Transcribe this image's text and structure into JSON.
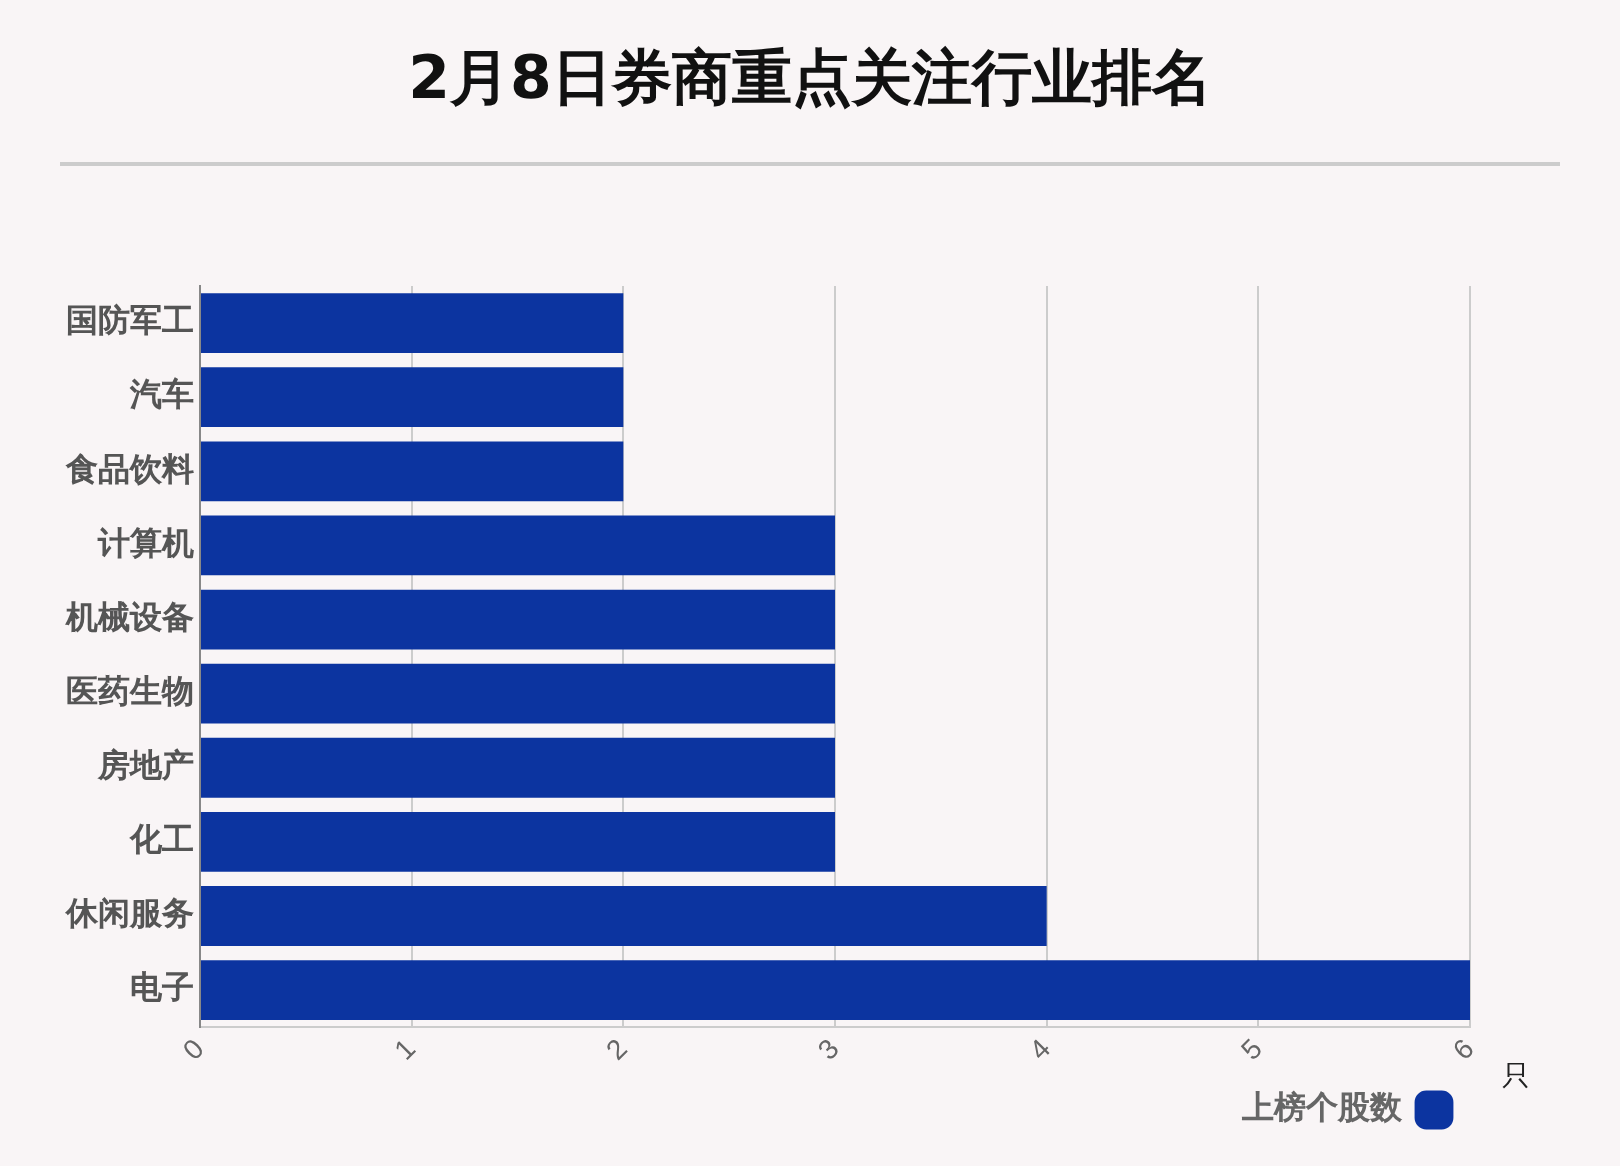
{
  "chart_data": {
    "type": "bar",
    "title": "2月8日券商重点关注行业排名",
    "orientation": "horizontal",
    "categories": [
      "国防军工",
      "汽车",
      "食品饮料",
      "计算机",
      "机械设备",
      "医药生物",
      "房地产",
      "化工",
      "休闲服务",
      "电子"
    ],
    "series": [
      {
        "name": "上榜个股数",
        "color": "#0c34a0",
        "values": [
          2,
          2,
          2,
          3,
          3,
          3,
          3,
          3,
          4,
          6
        ]
      }
    ],
    "xlabel": "只",
    "xlim": [
      0,
      6
    ],
    "xticks": [
      0,
      1,
      2,
      3,
      4,
      5,
      6
    ],
    "grid": "x",
    "legend": "bottom right"
  }
}
